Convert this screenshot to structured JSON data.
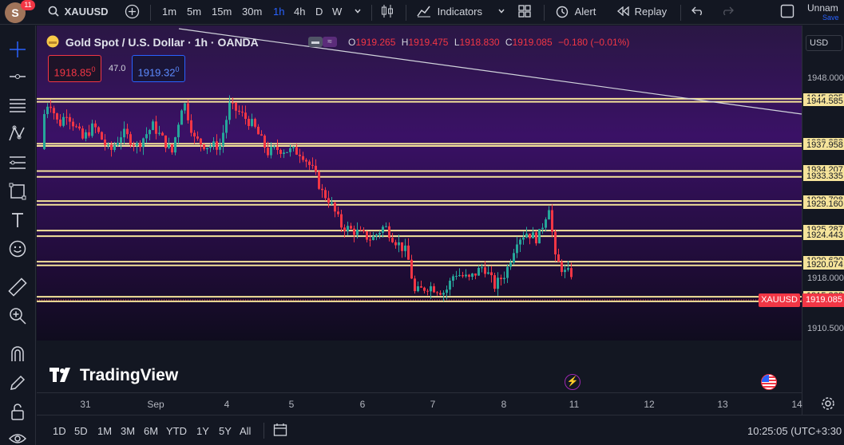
{
  "topbar": {
    "avatar_letter": "S",
    "notif_count": "11",
    "symbol": "XAUUSD",
    "intervals": [
      "1m",
      "5m",
      "15m",
      "30m",
      "1h",
      "4h",
      "D",
      "W"
    ],
    "active_interval": "1h",
    "indicators_label": "Indicators",
    "alert_label": "Alert",
    "replay_label": "Replay",
    "layout_name": "Unnam",
    "save_label": "Save"
  },
  "legend": {
    "title": "Gold Spot / U.S. Dollar · 1h · OANDA",
    "o_label": "O",
    "o_value": "1919.265",
    "h_label": "H",
    "h_value": "1919.475",
    "l_label": "L",
    "l_value": "1918.830",
    "c_label": "C",
    "c_value": "1919.085",
    "change": "−0.180 (−0.01%)",
    "sell_price": "1918.85",
    "sell_sup": "0",
    "spread": "47.0",
    "buy_price": "1919.32",
    "buy_sup": "0"
  },
  "price_axis": {
    "currency": "USD",
    "labels": [
      {
        "text": "1948.000",
        "highlight": false
      },
      {
        "text": "1945.025",
        "highlight": true
      },
      {
        "text": "1944.585",
        "highlight": true
      },
      {
        "text": "1938.288",
        "highlight": true
      },
      {
        "text": "1937.958",
        "highlight": true
      },
      {
        "text": "1934.207",
        "highlight": true
      },
      {
        "text": "1933.335",
        "highlight": true
      },
      {
        "text": "1929.708",
        "highlight": true
      },
      {
        "text": "1929.160",
        "highlight": true
      },
      {
        "text": "1925.287",
        "highlight": true
      },
      {
        "text": "1924.443",
        "highlight": true
      },
      {
        "text": "1920.620",
        "highlight": true
      },
      {
        "text": "1920.074",
        "highlight": true
      },
      {
        "text": "1918.000",
        "highlight": false
      },
      {
        "text": "1915.369",
        "highlight": true
      },
      {
        "text": "1914.684",
        "highlight": true
      },
      {
        "text": "1910.500",
        "highlight": false
      }
    ],
    "last_price": "1919.085",
    "symbol_tag": "XAUUSD"
  },
  "time_axis": [
    "31",
    "Sep",
    "4",
    "5",
    "6",
    "7",
    "8",
    "11",
    "12",
    "13",
    "14"
  ],
  "bottombar": {
    "ranges": [
      "1D",
      "5D",
      "1M",
      "3M",
      "6M",
      "YTD",
      "1Y",
      "5Y",
      "All"
    ],
    "clock": "10:25:05 (UTC+3:30"
  },
  "watermark": "TradingView",
  "colors": {
    "up": "#26a69a",
    "down": "#f23645",
    "level": "#f5e39a",
    "bg": "#131722"
  },
  "chart_data": {
    "type": "candlestick",
    "ylim": [
      1908,
      1949
    ],
    "levels": [
      1945.025,
      1944.585,
      1938.288,
      1937.958,
      1934.207,
      1933.335,
      1929.708,
      1929.16,
      1925.287,
      1924.443,
      1920.62,
      1920.074,
      1915.369,
      1914.684
    ],
    "key_points": [
      {
        "x": "31",
        "close": 1938
      },
      {
        "x": "Sep",
        "close": 1940
      },
      {
        "x": "4",
        "close": 1942
      },
      {
        "x": "5",
        "close": 1937
      },
      {
        "x": "6",
        "close": 1925
      },
      {
        "x": "7",
        "close": 1916
      },
      {
        "x": "8",
        "close": 1924
      },
      {
        "x": "11",
        "close": 1919.085
      }
    ]
  }
}
